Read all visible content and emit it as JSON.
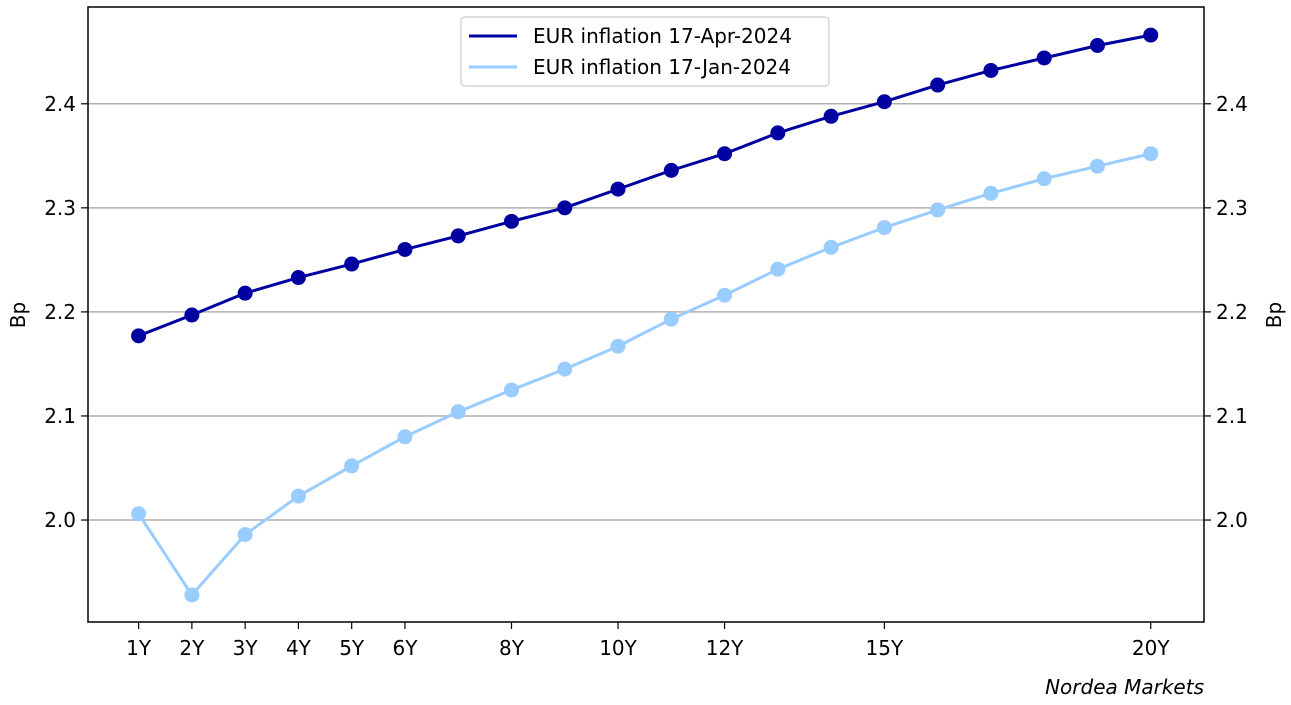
{
  "chart_data": {
    "type": "line",
    "title": "",
    "xlabel": "",
    "ylabel_left": "Bp",
    "ylabel_right": "Bp",
    "source_label": "Nordea Markets",
    "x_range": [
      0.05,
      21.0
    ],
    "ylim": [
      1.902,
      2.493
    ],
    "y_ticks": [
      "2.0",
      "2.1",
      "2.2",
      "2.3",
      "2.4"
    ],
    "x_ticks": [
      {
        "x": 1,
        "label": "1Y"
      },
      {
        "x": 2,
        "label": "2Y"
      },
      {
        "x": 3,
        "label": "3Y"
      },
      {
        "x": 4,
        "label": "4Y"
      },
      {
        "x": 5,
        "label": "5Y"
      },
      {
        "x": 6,
        "label": "6Y"
      },
      {
        "x": 8,
        "label": "8Y"
      },
      {
        "x": 10,
        "label": "10Y"
      },
      {
        "x": 12,
        "label": "12Y"
      },
      {
        "x": 15,
        "label": "15Y"
      },
      {
        "x": 20,
        "label": "20Y"
      }
    ],
    "grid": "horizontal",
    "legend_position": "top-center",
    "x": [
      1,
      2,
      3,
      4,
      5,
      6,
      7,
      8,
      9,
      10,
      11,
      12,
      13,
      14,
      15,
      16,
      17,
      18,
      19,
      20
    ],
    "series": [
      {
        "name": "EUR inflation 17-Apr-2024",
        "color": "#0000a0",
        "values": [
          2.177,
          2.197,
          2.218,
          2.233,
          2.246,
          2.26,
          2.273,
          2.287,
          2.3,
          2.318,
          2.336,
          2.352,
          2.372,
          2.388,
          2.402,
          2.418,
          2.432,
          2.444,
          2.456,
          2.466
        ]
      },
      {
        "name": "EUR inflation 17-Jan-2024",
        "color": "#99ccff",
        "values": [
          2.006,
          1.928,
          1.986,
          2.023,
          2.052,
          2.08,
          2.104,
          2.125,
          2.145,
          2.167,
          2.193,
          2.216,
          2.241,
          2.262,
          2.281,
          2.298,
          2.314,
          2.328,
          2.34,
          2.352
        ]
      }
    ]
  }
}
